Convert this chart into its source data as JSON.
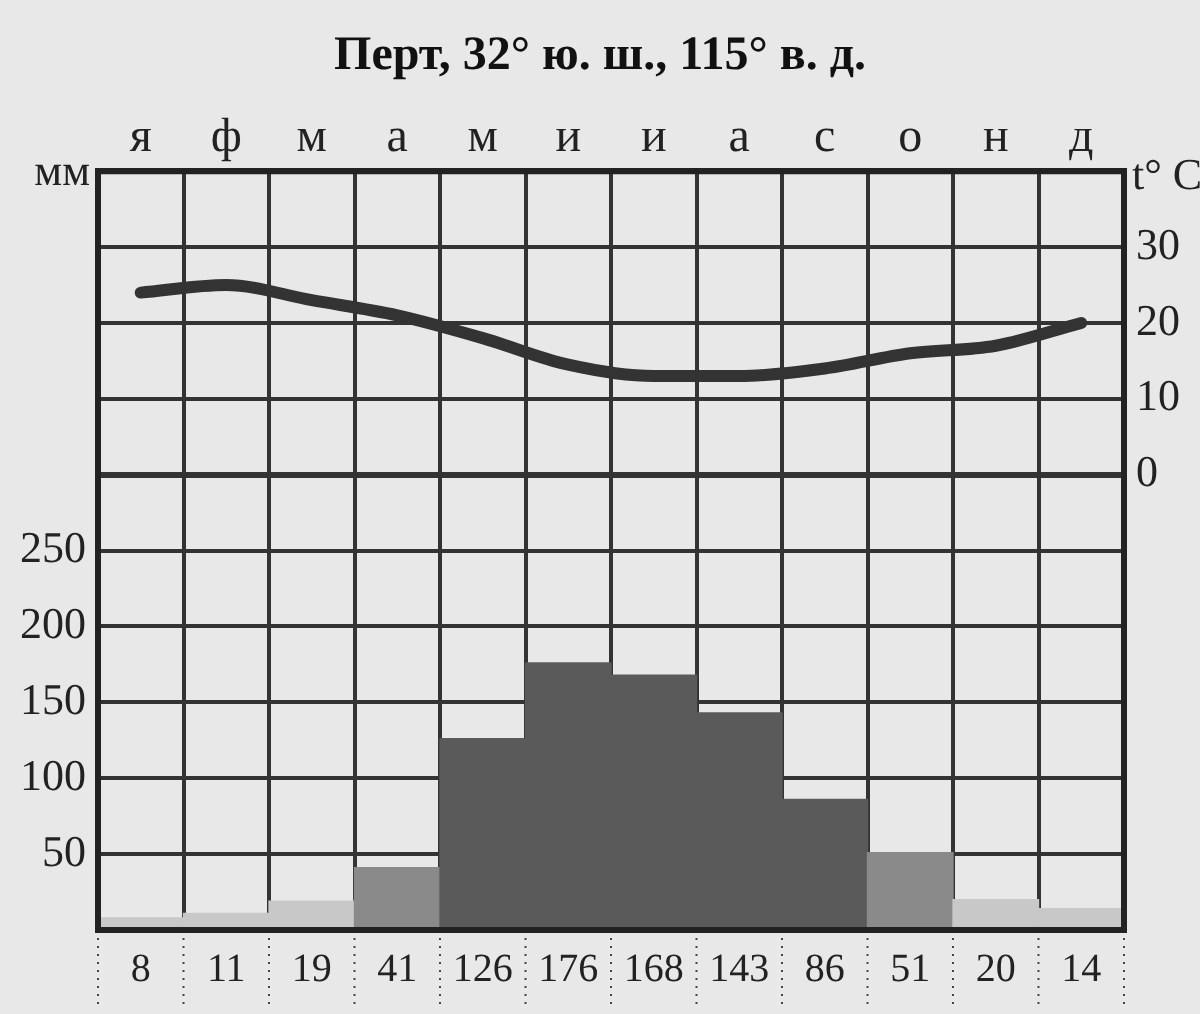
{
  "chart_data": {
    "type": "bar",
    "title": "Перт, 32° ю. ш., 115° в. д.",
    "ylabel": "мм",
    "y2label": "t° C",
    "categories": [
      "я",
      "ф",
      "м",
      "а",
      "м",
      "и",
      "и",
      "а",
      "с",
      "о",
      "н",
      "д"
    ],
    "series": [
      {
        "colors": [
          "#c8c8c8",
          "#c8c8c8",
          "#c8c8c8",
          "#8a8a8a",
          "#5a5a5a",
          "#5a5a5a",
          "#5a5a5a",
          "#5a5a5a",
          "#5a5a5a",
          "#8a8a8a",
          "#c8c8c8",
          "#c8c8c8"
        ],
        "values": [
          8,
          11,
          19,
          41,
          126,
          176,
          168,
          143,
          86,
          51,
          20,
          14
        ],
        "value_labels": [
          "8",
          "11",
          "19",
          "41",
          "126",
          "176",
          "168",
          "143",
          "86",
          "51",
          "20",
          "14"
        ]
      },
      {
        "type": "line",
        "axis": "y2",
        "color": "#333333",
        "values": [
          24,
          25,
          23,
          21,
          18,
          14.5,
          13,
          13,
          14,
          16,
          17,
          20
        ]
      }
    ],
    "ylim": [
      0,
      500
    ],
    "yticks": [
      50,
      100,
      150,
      200,
      250
    ],
    "y2lim": [
      -60,
      40
    ],
    "y2ticks": [
      0,
      10,
      20,
      30
    ],
    "grid": true,
    "legend": false,
    "marker": "none",
    "line_style": "solid"
  }
}
